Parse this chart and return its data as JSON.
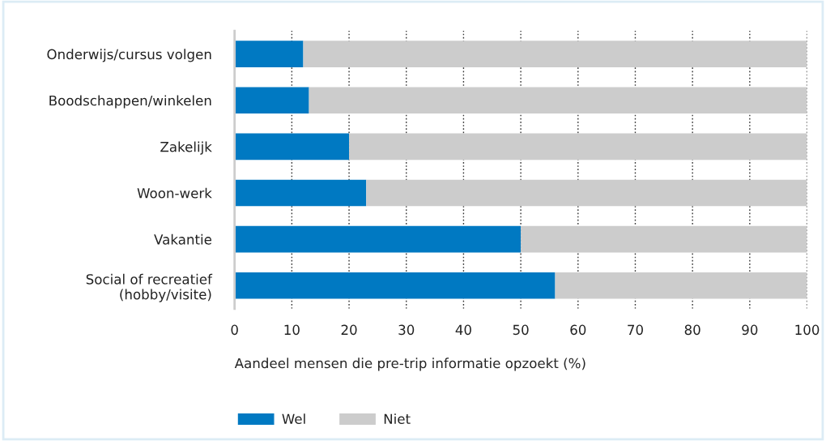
{
  "chart_data": {
    "type": "bar",
    "orientation": "horizontal",
    "stacked": true,
    "categories": [
      "Onderwijs/cursus volgen",
      "Boodschappen/winkelen",
      "Zakelijk",
      "Woon-werk",
      "Vakantie",
      "Social of recreatief\n(hobby/visite)"
    ],
    "series": [
      {
        "name": "Wel",
        "color": "#0079c2",
        "values": [
          12,
          13,
          20,
          23,
          50,
          56
        ]
      },
      {
        "name": "Niet",
        "color": "#cccccc",
        "values": [
          88,
          87,
          80,
          77,
          50,
          44
        ]
      }
    ],
    "xlabel": "Aandeel mensen die pre-trip informatie opzoekt (%)",
    "xlim": [
      0,
      100
    ],
    "xticks": [
      0,
      10,
      20,
      30,
      40,
      50,
      60,
      70,
      80,
      90,
      100
    ],
    "grid": "x",
    "legend": "bottom"
  }
}
